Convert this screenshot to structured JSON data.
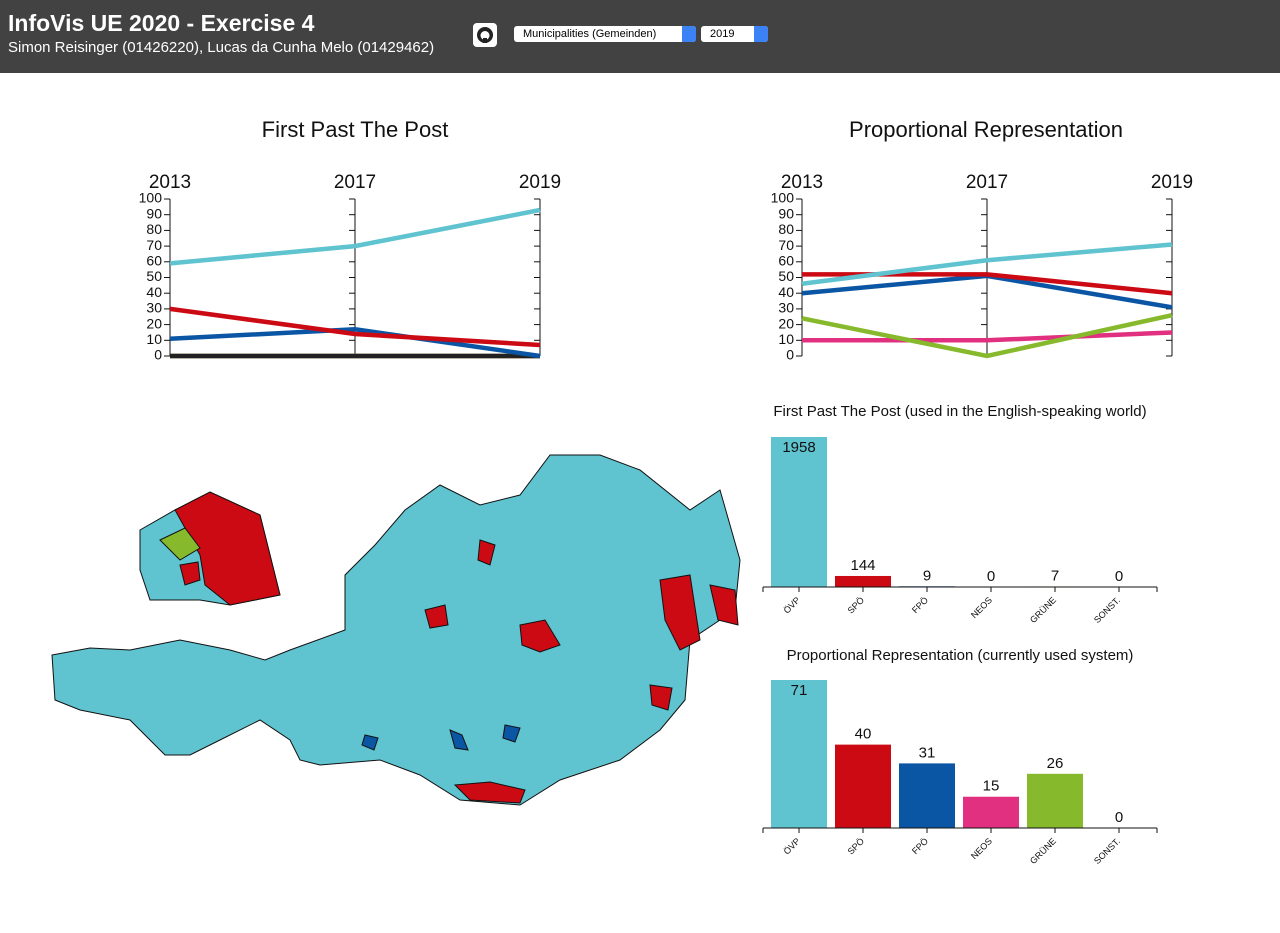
{
  "header": {
    "title": "InfoVis UE 2020 - Exercise 4",
    "subtitle": "Simon Reisinger (01426220), Lucas da Cunha Melo (01429462)"
  },
  "controls": {
    "level": "Municipalities (Gemeinden)",
    "year": "2019"
  },
  "chart_data": [
    {
      "type": "parallel",
      "title": "First Past The Post",
      "categories": [
        "2013",
        "2017",
        "2019"
      ],
      "ylim": [
        0,
        100
      ],
      "yticks": [
        0,
        10,
        20,
        30,
        40,
        50,
        60,
        70,
        80,
        90,
        100
      ],
      "series": [
        {
          "color": "#e0307f",
          "values": [
            0,
            0,
            0
          ]
        },
        {
          "color": "#86b92b",
          "values": [
            0,
            0,
            0
          ]
        },
        {
          "color": "#222222",
          "values": [
            0,
            0,
            0
          ]
        },
        {
          "color": "#0b56a4",
          "values": [
            11,
            17,
            0
          ]
        },
        {
          "color": "#cc0a13",
          "values": [
            30,
            14,
            7
          ]
        },
        {
          "color": "#5fc3d0",
          "values": [
            59,
            70,
            93
          ]
        }
      ]
    },
    {
      "type": "parallel",
      "title": "Proportional Representation",
      "categories": [
        "2013",
        "2017",
        "2019"
      ],
      "ylim": [
        0,
        100
      ],
      "yticks": [
        0,
        10,
        20,
        30,
        40,
        50,
        60,
        70,
        80,
        90,
        100
      ],
      "series": [
        {
          "color": "#e0307f",
          "values": [
            10,
            10,
            15
          ]
        },
        {
          "color": "#86b92b",
          "values": [
            24,
            0,
            26
          ]
        },
        {
          "color": "#0b56a4",
          "values": [
            40,
            51,
            31
          ]
        },
        {
          "color": "#cc0a13",
          "values": [
            52,
            52,
            40
          ]
        },
        {
          "color": "#5fc3d0",
          "values": [
            46,
            61,
            71
          ]
        }
      ]
    },
    {
      "type": "bar",
      "title": "First Past The Post (used in the English-speaking world)",
      "categories": [
        "ÖVP",
        "SPÖ",
        "FPÖ",
        "NEOS",
        "GRÜNE",
        "SONST."
      ],
      "values": [
        1958,
        144,
        9,
        0,
        7,
        0
      ],
      "colors": [
        "#5fc3d0",
        "#cc0a13",
        "#0b56a4",
        "#e0307f",
        "#86b92b",
        "#222222"
      ]
    },
    {
      "type": "bar",
      "title": "Proportional Representation (currently used system)",
      "categories": [
        "ÖVP",
        "SPÖ",
        "FPÖ",
        "NEOS",
        "GRÜNE",
        "SONST."
      ],
      "values": [
        71,
        40,
        31,
        15,
        26,
        0
      ],
      "colors": [
        "#5fc3d0",
        "#cc0a13",
        "#0b56a4",
        "#e0307f",
        "#86b92b",
        "#222222"
      ]
    }
  ]
}
